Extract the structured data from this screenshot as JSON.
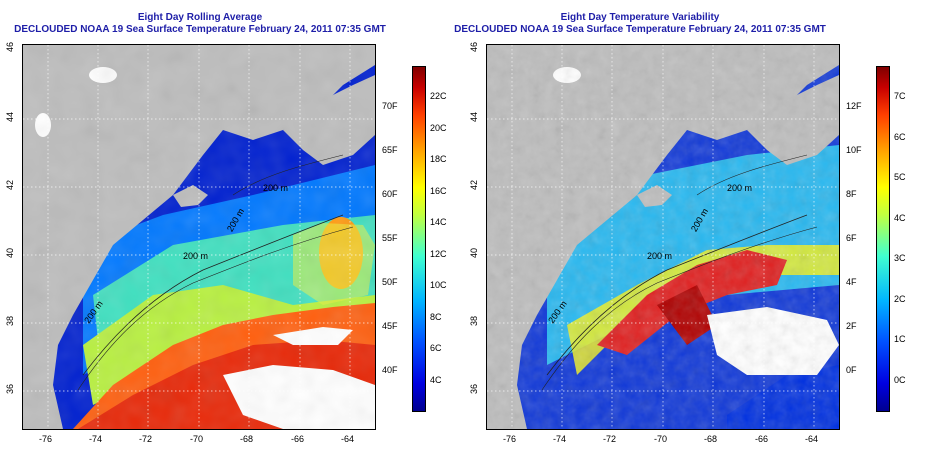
{
  "panels": [
    {
      "title_line1": "Eight Day Rolling Average",
      "title_line2": "DECLOUDED NOAA 19 Sea Surface Temperature February 24, 2011 07:35 GMT",
      "colorbar_f_labels": [
        "40F",
        "45F",
        "50F",
        "55F",
        "60F",
        "65F",
        "70F"
      ],
      "colorbar_c_labels": [
        "4C",
        "6C",
        "8C",
        "10C",
        "12C",
        "14C",
        "16C",
        "18C",
        "20C",
        "22C"
      ],
      "contour_labels": [
        "200 m",
        "200 m",
        "200 m",
        "200 m"
      ]
    },
    {
      "title_line1": "Eight Day Temperature Variability",
      "title_line2": "DECLOUDED NOAA 19 Sea Surface Temperature February 24, 2011 07:35 GMT",
      "colorbar_f_labels": [
        "0F",
        "2F",
        "4F",
        "6F",
        "8F",
        "10F",
        "12F"
      ],
      "colorbar_c_labels": [
        "0C",
        "1C",
        "2C",
        "3C",
        "4C",
        "5C",
        "6C",
        "7C"
      ],
      "contour_labels": [
        "200 m",
        "200 m",
        "200 m",
        "200 m"
      ]
    }
  ],
  "x_ticks": [
    "-76",
    "-74",
    "-72",
    "-70",
    "-68",
    "-66",
    "-64"
  ],
  "y_ticks": [
    "36",
    "38",
    "40",
    "42",
    "44",
    "46"
  ],
  "colors": {
    "land": "#bdbdbd",
    "cloud": "#ffffff",
    "title": "#1e1ea8"
  }
}
